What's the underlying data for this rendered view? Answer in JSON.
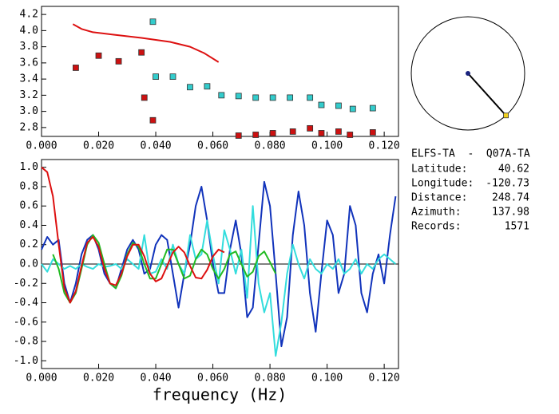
{
  "chart_data": [
    {
      "type": "scatter",
      "xlim": [
        0,
        0.125
      ],
      "ylim": [
        2.69,
        4.3
      ],
      "xticks": [
        {
          "value": 0,
          "label": "0.000"
        },
        {
          "value": 0.02,
          "label": "0.020"
        },
        {
          "value": 0.04,
          "label": "0.040"
        },
        {
          "value": 0.06,
          "label": "0.060"
        },
        {
          "value": 0.08,
          "label": "0.080"
        },
        {
          "value": 0.1,
          "label": "0.100"
        },
        {
          "value": 0.12,
          "label": "0.120"
        }
      ],
      "yticks": [
        2.8,
        {
          "value": 3,
          "label": "3.0"
        },
        3.2,
        3.4,
        3.6,
        3.8,
        {
          "value": 4,
          "label": "4.0"
        },
        4.2
      ],
      "series": [
        {
          "color": "#cc1111",
          "marker": "square",
          "x": [
            0.012,
            0.02,
            0.027,
            0.035,
            0.036,
            0.039,
            0.069,
            0.075,
            0.081,
            0.088,
            0.094,
            0.098,
            0.104,
            0.108,
            0.116
          ],
          "values": [
            3.54,
            3.69,
            3.62,
            3.73,
            3.17,
            2.89,
            2.7,
            2.71,
            2.73,
            2.75,
            2.79,
            2.73,
            2.75,
            2.71,
            2.74
          ]
        },
        {
          "color": "#33cccc",
          "marker": "square",
          "x": [
            0.039,
            0.04,
            0.046,
            0.052,
            0.058,
            0.063,
            0.069,
            0.075,
            0.081,
            0.087,
            0.094,
            0.098,
            0.104,
            0.109,
            0.116
          ],
          "values": [
            4.11,
            3.43,
            3.43,
            3.3,
            3.31,
            3.2,
            3.19,
            3.17,
            3.17,
            3.17,
            3.17,
            3.08,
            3.07,
            3.03,
            3.04
          ]
        },
        {
          "color": "#dd1111",
          "marker": "line",
          "x": [
            0.011,
            0.014,
            0.018,
            0.025,
            0.035,
            0.045,
            0.052,
            0.057,
            0.062
          ],
          "values": [
            4.08,
            4.02,
            3.98,
            3.95,
            3.91,
            3.86,
            3.8,
            3.72,
            3.61
          ]
        }
      ]
    },
    {
      "type": "line",
      "xlabel": "frequency (Hz)",
      "xlim": [
        0,
        0.125
      ],
      "ylim": [
        -1.08,
        1.08
      ],
      "zero_line": true,
      "xticks": [
        {
          "value": 0,
          "label": "0.000"
        },
        {
          "value": 0.02,
          "label": "0.020"
        },
        {
          "value": 0.04,
          "label": "0.040"
        },
        {
          "value": 0.06,
          "label": "0.060"
        },
        {
          "value": 0.08,
          "label": "0.080"
        },
        {
          "value": 0.1,
          "label": "0.100"
        },
        {
          "value": 0.12,
          "label": "0.120"
        }
      ],
      "yticks": [
        {
          "value": -1,
          "label": "-1.0"
        },
        -0.8,
        -0.6,
        -0.4,
        -0.2,
        {
          "value": 0,
          "label": "0.0"
        },
        0.2,
        0.4,
        0.6,
        0.8,
        {
          "value": 1,
          "label": "1.0"
        }
      ],
      "series": [
        {
          "color": "#1133bb",
          "x": [
            0,
            0.002,
            0.004,
            0.006,
            0.008,
            0.01,
            0.012,
            0.014,
            0.016,
            0.018,
            0.02,
            0.022,
            0.024,
            0.026,
            0.028,
            0.03,
            0.032,
            0.034,
            0.036,
            0.038,
            0.04,
            0.042,
            0.044,
            0.046,
            0.048,
            0.05,
            0.052,
            0.054,
            0.056,
            0.058,
            0.06,
            0.062,
            0.064,
            0.066,
            0.068,
            0.07,
            0.072,
            0.074,
            0.076,
            0.078,
            0.08,
            0.082,
            0.084,
            0.086,
            0.088,
            0.09,
            0.092,
            0.094,
            0.096,
            0.098,
            0.1,
            0.102,
            0.104,
            0.106,
            0.108,
            0.11,
            0.112,
            0.114,
            0.116,
            0.118,
            0.12,
            0.122,
            0.124
          ],
          "values": [
            0.15,
            0.28,
            0.2,
            0.25,
            -0.2,
            -0.4,
            -0.2,
            0.1,
            0.25,
            0.3,
            0.15,
            -0.1,
            -0.2,
            -0.25,
            -0.05,
            0.15,
            0.25,
            0.15,
            -0.1,
            -0.05,
            0.2,
            0.3,
            0.25,
            -0.1,
            -0.45,
            -0.1,
            0.2,
            0.6,
            0.8,
            0.45,
            0,
            -0.3,
            -0.3,
            0.15,
            0.45,
            0.1,
            -0.55,
            -0.45,
            0.2,
            0.85,
            0.6,
            -0.1,
            -0.85,
            -0.55,
            0.3,
            0.75,
            0.4,
            -0.3,
            -0.7,
            -0.1,
            0.45,
            0.3,
            -0.3,
            -0.1,
            0.6,
            0.4,
            -0.3,
            -0.5,
            -0.1,
            0.1,
            -0.2,
            0.3,
            0.7
          ]
        },
        {
          "color": "#33dddd",
          "x": [
            0,
            0.002,
            0.004,
            0.006,
            0.008,
            0.01,
            0.012,
            0.014,
            0.016,
            0.018,
            0.02,
            0.022,
            0.024,
            0.026,
            0.028,
            0.03,
            0.032,
            0.034,
            0.036,
            0.038,
            0.04,
            0.042,
            0.044,
            0.046,
            0.048,
            0.05,
            0.052,
            0.054,
            0.056,
            0.058,
            0.06,
            0.062,
            0.064,
            0.066,
            0.068,
            0.07,
            0.072,
            0.074,
            0.076,
            0.078,
            0.08,
            0.082,
            0.084,
            0.086,
            0.088,
            0.09,
            0.092,
            0.094,
            0.096,
            0.098,
            0.1,
            0.102,
            0.104,
            0.106,
            0.108,
            0.11,
            0.112,
            0.114,
            0.116,
            0.118,
            0.12,
            0.122,
            0.124
          ],
          "values": [
            0,
            -0.08,
            0.05,
            0,
            -0.05,
            -0.02,
            -0.05,
            0,
            -0.03,
            -0.05,
            0,
            -0.03,
            -0.02,
            0,
            -0.05,
            0.05,
            0,
            -0.05,
            0.3,
            -0.1,
            -0.08,
            0.05,
            -0.05,
            0.2,
            0,
            -0.1,
            0.3,
            0.05,
            0.1,
            0.45,
            0.1,
            -0.2,
            0.35,
            0.15,
            -0.1,
            0.15,
            -0.35,
            0.6,
            -0.2,
            -0.5,
            -0.3,
            -0.95,
            -0.6,
            -0.1,
            0.2,
            0,
            -0.15,
            0.05,
            -0.05,
            -0.1,
            0,
            -0.05,
            0.05,
            -0.1,
            -0.05,
            0.05,
            -0.1,
            0,
            -0.05,
            0.05,
            0.1,
            0.05,
            0
          ]
        },
        {
          "color": "#22bb22",
          "x": [
            0.004,
            0.006,
            0.008,
            0.01,
            0.012,
            0.014,
            0.016,
            0.018,
            0.02,
            0.022,
            0.024,
            0.026,
            0.028,
            0.03,
            0.032,
            0.034,
            0.036,
            0.038,
            0.04,
            0.042,
            0.044,
            0.046,
            0.048,
            0.05,
            0.052,
            0.054,
            0.056,
            0.058,
            0.06,
            0.062,
            0.064,
            0.066,
            0.068,
            0.07,
            0.072,
            0.074,
            0.076,
            0.078,
            0.08,
            0.082
          ],
          "values": [
            0.1,
            -0.05,
            -0.3,
            -0.4,
            -0.3,
            -0.05,
            0.2,
            0.3,
            0.22,
            0,
            -0.2,
            -0.25,
            -0.12,
            0.1,
            0.22,
            0.18,
            0,
            -0.15,
            -0.15,
            0,
            0.15,
            0.15,
            0,
            -0.15,
            -0.12,
            0.05,
            0.15,
            0.1,
            -0.05,
            -0.15,
            -0.05,
            0.1,
            0.13,
            0,
            -0.13,
            -0.08,
            0.08,
            0.13,
            0.02,
            -0.1
          ]
        },
        {
          "color": "#dd1111",
          "x": [
            0,
            0.002,
            0.004,
            0.006,
            0.008,
            0.01,
            0.012,
            0.014,
            0.016,
            0.018,
            0.02,
            0.022,
            0.024,
            0.026,
            0.028,
            0.03,
            0.032,
            0.034,
            0.036,
            0.038,
            0.04,
            0.042,
            0.044,
            0.046,
            0.048,
            0.05,
            0.052,
            0.054,
            0.056,
            0.058,
            0.06,
            0.062,
            0.064
          ],
          "values": [
            1,
            0.95,
            0.7,
            0.2,
            -0.25,
            -0.4,
            -0.28,
            -0.02,
            0.22,
            0.28,
            0.18,
            -0.05,
            -0.2,
            -0.22,
            -0.1,
            0.08,
            0.2,
            0.2,
            0.08,
            -0.1,
            -0.18,
            -0.15,
            -0.02,
            0.12,
            0.18,
            0.12,
            -0.02,
            -0.14,
            -0.15,
            -0.06,
            0.08,
            0.15,
            0.12
          ]
        }
      ]
    }
  ],
  "station": {
    "pair": "ELFS-TA  -  Q07A-TA",
    "fields": [
      {
        "label": "Latitude:",
        "value": 40.62
      },
      {
        "label": "Longitude:",
        "value": -120.73
      },
      {
        "label": "Distance:",
        "value": 248.74
      },
      {
        "label": "Azimuth:",
        "value": 137.98
      },
      {
        "label": "Records:",
        "value": 1571
      }
    ]
  }
}
